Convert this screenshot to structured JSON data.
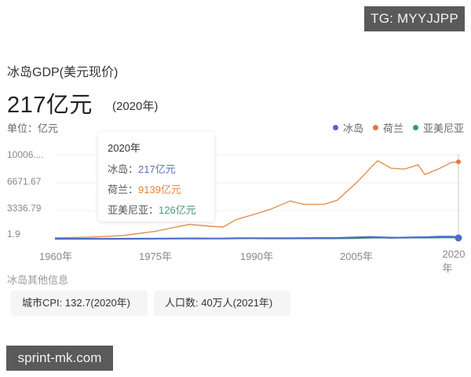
{
  "watermarks": {
    "top": "TG: MYYJJPP",
    "bottom": "sprint-mk.com"
  },
  "header": {
    "title": "冰岛GDP(美元现价)",
    "value": "217亿元",
    "year": "(2020年)",
    "unit": "单位：亿元"
  },
  "legend": [
    {
      "label": "冰岛",
      "color": "#4e6ac8"
    },
    {
      "label": "荷兰",
      "color": "#e07b39"
    },
    {
      "label": "亚美尼亚",
      "color": "#3a9a6a"
    }
  ],
  "tooltip": {
    "year": "2020年",
    "rows": [
      {
        "label": "冰岛：",
        "value": "217亿元",
        "color": "#4e6ac8"
      },
      {
        "label": "荷兰：",
        "value": "9139亿元",
        "color": "#e07b39"
      },
      {
        "label": "亚美尼亚：",
        "value": "126亿元",
        "color": "#3a9a6a"
      }
    ]
  },
  "other_info": {
    "title": "冰岛其他信息",
    "items": [
      {
        "text": "城市CPI: 132.7(2020年)"
      },
      {
        "text": "人口数: 40万人(2021年)"
      }
    ]
  },
  "chart_data": {
    "type": "line",
    "title": "冰岛GDP(美元现价)",
    "xlabel": "",
    "ylabel": "单位：亿元",
    "x_tick_labels": [
      "1960年",
      "1975年",
      "1990年",
      "2005年",
      "2020年"
    ],
    "y_tick_labels": [
      "1.9",
      "3336.79",
      "6671.67",
      "10006...."
    ],
    "ylim": [
      1.9,
      10006
    ],
    "xlim": [
      1960,
      2020
    ],
    "grid": true,
    "legend_position": "top-right",
    "x": [
      1960,
      1965,
      1970,
      1975,
      1978,
      1980,
      1983,
      1985,
      1987,
      1990,
      1992,
      1995,
      1997,
      2000,
      2002,
      2005,
      2007,
      2008,
      2010,
      2012,
      2014,
      2015,
      2017,
      2019,
      2020
    ],
    "series": [
      {
        "name": "冰岛",
        "color": "#4e6ac8",
        "values": [
          2,
          5,
          6,
          17,
          27,
          35,
          27,
          30,
          55,
          70,
          70,
          70,
          75,
          90,
          95,
          170,
          215,
          180,
          135,
          145,
          180,
          175,
          250,
          245,
          217
        ]
      },
      {
        "name": "荷兰",
        "color": "#e07b39",
        "values": [
          120,
          200,
          380,
          900,
          1400,
          1700,
          1500,
          1400,
          2300,
          3000,
          3500,
          4500,
          4100,
          4100,
          4600,
          6800,
          8500,
          9300,
          8400,
          8300,
          8800,
          7650,
          8300,
          9100,
          9139
        ]
      },
      {
        "name": "亚美尼亚",
        "color": "#3a9a6a",
        "values": [
          null,
          null,
          null,
          null,
          null,
          null,
          null,
          null,
          null,
          20,
          10,
          13,
          16,
          19,
          24,
          49,
          92,
          117,
          92,
          107,
          117,
          106,
          115,
          137,
          126
        ]
      }
    ],
    "highlight": {
      "x": 2020,
      "values": {
        "冰岛": 217,
        "荷兰": 9139,
        "亚美尼亚": 126
      }
    }
  }
}
